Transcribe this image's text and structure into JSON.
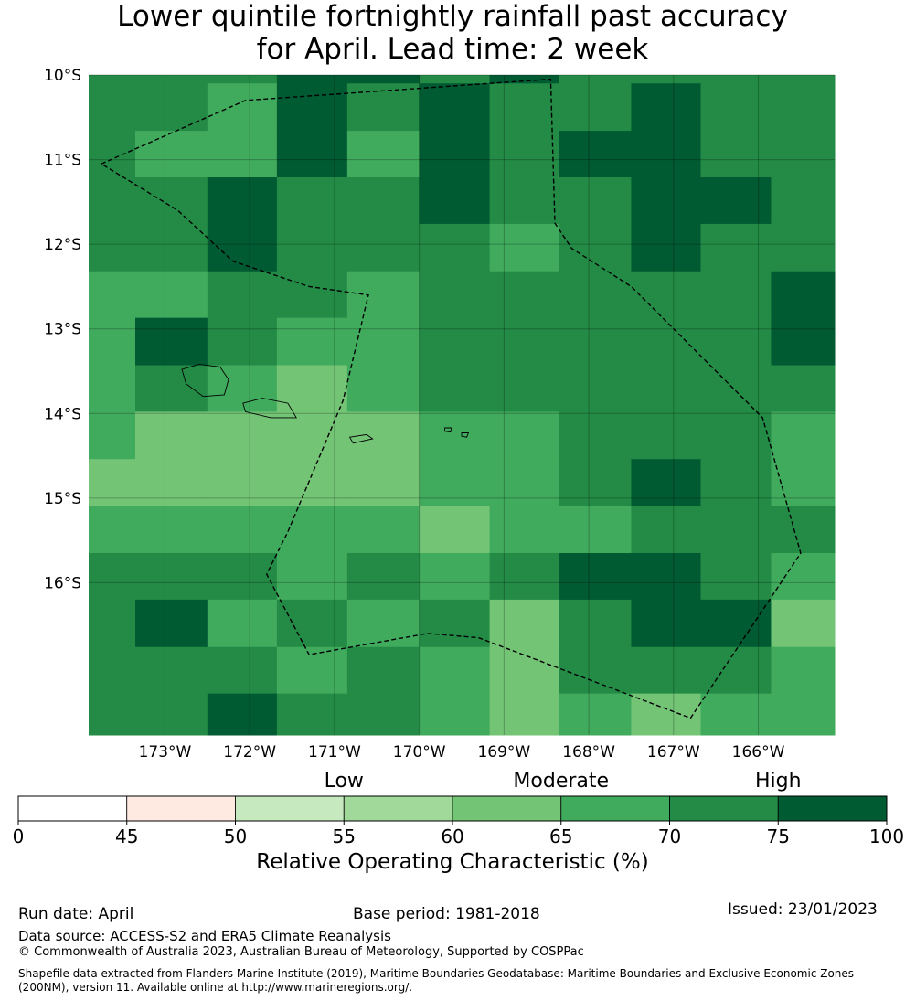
{
  "title": {
    "line1": "Lower quintile fortnightly rainfall past accuracy",
    "line2": "for April. Lead time: 2 week"
  },
  "map": {
    "lon_range": [
      -173.9,
      -165.1
    ],
    "lat_range": [
      -17.8,
      -10.0
    ],
    "lat_ticks": [
      "10°S",
      "11°S",
      "12°S",
      "13°S",
      "14°S",
      "15°S",
      "16°S"
    ],
    "lat_tick_values": [
      -10,
      -11,
      -12,
      -13,
      -14,
      -15,
      -16
    ],
    "lon_ticks": [
      "173°W",
      "172°W",
      "171°W",
      "170°W",
      "169°W",
      "168°W",
      "167°W",
      "166°W"
    ],
    "lon_tick_values": [
      -173,
      -172,
      -171,
      -170,
      -169,
      -168,
      -167,
      -166
    ],
    "grid_cells_lon_edges": [
      -173.9,
      -173.35,
      -172.5,
      -171.68,
      -170.85,
      -170.0,
      -169.17,
      -168.35,
      -167.5,
      -166.68,
      -165.85,
      -165.1
    ],
    "grid_cells_lat_edges": [
      -10.0,
      -10.1,
      -10.66,
      -11.21,
      -11.76,
      -12.32,
      -12.87,
      -13.43,
      -13.98,
      -14.54,
      -15.09,
      -15.65,
      -16.2,
      -16.76,
      -17.31,
      -17.86
    ],
    "grid_values": [
      [
        72,
        72,
        72,
        78,
        78,
        72,
        78,
        72,
        72,
        72,
        72
      ],
      [
        72,
        72,
        68,
        78,
        72,
        78,
        72,
        72,
        78,
        72,
        72
      ],
      [
        72,
        68,
        68,
        78,
        68,
        78,
        72,
        78,
        78,
        72,
        72
      ],
      [
        72,
        72,
        78,
        72,
        72,
        78,
        72,
        72,
        78,
        78,
        72
      ],
      [
        72,
        72,
        78,
        72,
        72,
        72,
        66,
        72,
        78,
        72,
        72
      ],
      [
        68,
        68,
        72,
        72,
        68,
        72,
        72,
        72,
        72,
        72,
        78
      ],
      [
        68,
        78,
        72,
        68,
        68,
        72,
        72,
        72,
        72,
        72,
        78
      ],
      [
        68,
        72,
        68,
        63,
        68,
        72,
        72,
        72,
        72,
        72,
        72
      ],
      [
        68,
        63,
        63,
        63,
        63,
        68,
        68,
        72,
        72,
        72,
        68
      ],
      [
        63,
        63,
        63,
        63,
        63,
        68,
        68,
        72,
        78,
        72,
        68
      ],
      [
        68,
        68,
        68,
        68,
        68,
        63,
        68,
        68,
        72,
        72,
        72
      ],
      [
        72,
        72,
        72,
        68,
        72,
        68,
        72,
        78,
        78,
        72,
        68
      ],
      [
        72,
        78,
        68,
        72,
        68,
        72,
        63,
        72,
        78,
        78,
        63
      ],
      [
        72,
        72,
        72,
        68,
        72,
        68,
        63,
        72,
        72,
        72,
        68
      ],
      [
        72,
        72,
        78,
        72,
        72,
        68,
        63,
        68,
        63,
        68,
        68
      ]
    ],
    "boundary": [
      [
        -173.75,
        -11.05
      ],
      [
        -172.05,
        -10.3
      ],
      [
        -168.45,
        -10.05
      ],
      [
        -168.4,
        -11.75
      ],
      [
        -168.2,
        -12.05
      ],
      [
        -167.5,
        -12.5
      ],
      [
        -165.95,
        -14.05
      ],
      [
        -165.5,
        -15.65
      ],
      [
        -166.8,
        -17.6
      ],
      [
        -169.3,
        -16.65
      ],
      [
        -169.9,
        -16.6
      ],
      [
        -171.3,
        -16.85
      ],
      [
        -171.8,
        -15.9
      ],
      [
        -171.55,
        -15.4
      ],
      [
        -170.9,
        -13.85
      ],
      [
        -170.6,
        -12.6
      ],
      [
        -171.3,
        -12.5
      ],
      [
        -172.2,
        -12.2
      ],
      [
        -172.85,
        -11.6
      ],
      [
        -173.75,
        -11.05
      ]
    ]
  },
  "colorbar": {
    "ticks": [
      "0",
      "45",
      "50",
      "55",
      "60",
      "65",
      "70",
      "75",
      "100"
    ],
    "colors": [
      "#ffffff",
      "#feeae1",
      "#c7e9c0",
      "#a1d99b",
      "#74c476",
      "#41ab5d",
      "#238b45",
      "#005a32"
    ],
    "category_labels": [
      "Low",
      "Moderate",
      "High"
    ],
    "title": "Relative Operating Characteristic (%)"
  },
  "footer": {
    "run_date": "Run date: April",
    "base_period": "Base period: 1981-2018",
    "issued": "Issued: 23/01/2023",
    "data_source": "Data source: ACCESS-S2 and ERA5 Climate Reanalysis",
    "copyright": "© Commonwealth of Australia 2023, Australian Bureau of Meteorology, Supported by COSPPac",
    "shapefile": "Shapefile data extracted from Flanders Marine Institute (2019), Maritime Boundaries Geodatabase: Maritime Boundaries and Exclusive Economic Zones (200NM), version 11. Available online at http://www.marineregions.org/."
  }
}
